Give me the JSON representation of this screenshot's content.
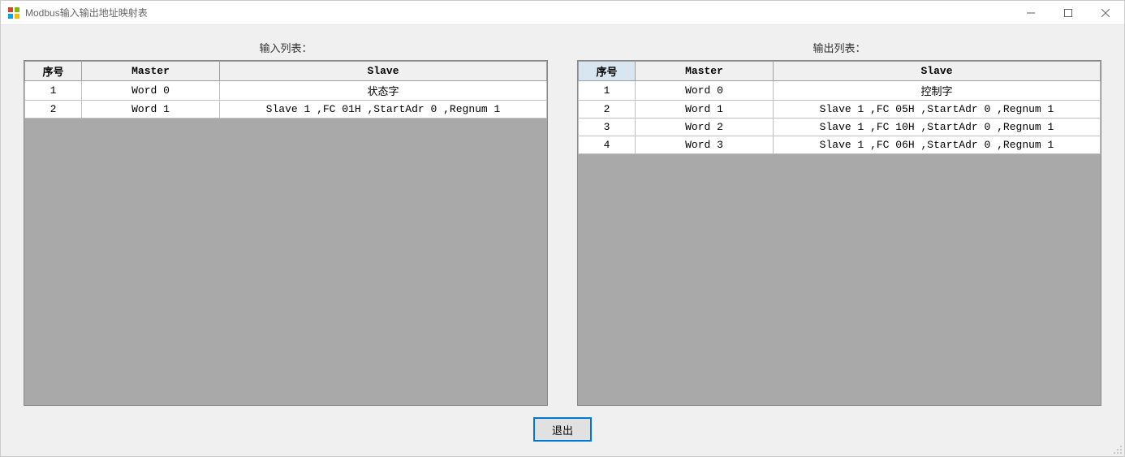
{
  "window": {
    "title": "Modbus输入输出地址映射表"
  },
  "labels": {
    "input_list": "输入列表：",
    "output_list": "输出列表：",
    "exit": "退出"
  },
  "columns": {
    "seq": "序号",
    "master": "Master",
    "slave": "Slave"
  },
  "input_table": {
    "rows": [
      {
        "seq": "1",
        "master": "Word 0",
        "slave": "状态字"
      },
      {
        "seq": "2",
        "master": "Word 1",
        "slave": "Slave 1 ,FC 01H ,StartAdr 0 ,Regnum 1"
      }
    ]
  },
  "output_table": {
    "selected_header": "seq",
    "rows": [
      {
        "seq": "1",
        "master": "Word 0",
        "slave": "控制字"
      },
      {
        "seq": "2",
        "master": "Word 1",
        "slave": "Slave 1 ,FC 05H ,StartAdr 0 ,Regnum 1"
      },
      {
        "seq": "3",
        "master": "Word 2",
        "slave": "Slave 1 ,FC 10H ,StartAdr 0 ,Regnum 1"
      },
      {
        "seq": "4",
        "master": "Word 3",
        "slave": "Slave 1 ,FC 06H ,StartAdr 0 ,Regnum 1"
      }
    ]
  },
  "colors": {
    "client_bg": "#f0f0f0",
    "grid_empty_bg": "#a9a9a9",
    "header_bg": "#f0f0f0",
    "header_selected_bg": "#d8e6f2",
    "cell_border": "#c0c0c0",
    "accent": "#0078d7"
  }
}
